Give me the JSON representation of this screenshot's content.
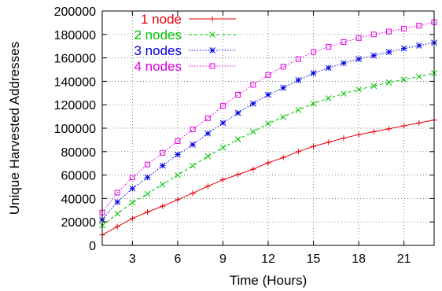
{
  "chart_data": {
    "type": "line",
    "title": "",
    "xlabel": "Time (Hours)",
    "ylabel": "Unique Harvested Addresses",
    "xlim": [
      1,
      23
    ],
    "ylim": [
      0,
      200000
    ],
    "x_ticks": [
      3,
      6,
      9,
      12,
      15,
      18,
      21
    ],
    "y_ticks": [
      0,
      20000,
      40000,
      60000,
      80000,
      100000,
      120000,
      140000,
      160000,
      180000,
      200000
    ],
    "grid": true,
    "legend_position": "top-left",
    "x": [
      1,
      2,
      3,
      4,
      5,
      6,
      7,
      8,
      9,
      10,
      11,
      12,
      13,
      14,
      15,
      16,
      17,
      18,
      19,
      20,
      21,
      22,
      23
    ],
    "series": [
      {
        "name": "1 node",
        "color": "#e8000b",
        "marker": "plus",
        "dash": "solid",
        "values": [
          9000,
          16000,
          23000,
          28500,
          33500,
          39000,
          44500,
          50500,
          56000,
          60500,
          65000,
          70500,
          75000,
          80000,
          84500,
          88000,
          91500,
          94500,
          97000,
          99500,
          102000,
          104500,
          107000
        ]
      },
      {
        "name": "2 nodes",
        "color": "#00c400",
        "marker": "cross",
        "dash": "dashed",
        "values": [
          17000,
          27000,
          36500,
          44000,
          52000,
          60000,
          68000,
          76000,
          83500,
          90500,
          97000,
          104000,
          109500,
          115500,
          121000,
          125500,
          129500,
          133000,
          136000,
          139000,
          141500,
          144000,
          147000
        ]
      },
      {
        "name": "3 nodes",
        "color": "#0000e0",
        "marker": "star",
        "dash": "dotted",
        "values": [
          22000,
          37000,
          48500,
          58000,
          68000,
          77500,
          86000,
          95500,
          104500,
          113000,
          121000,
          128500,
          134500,
          141000,
          147000,
          151500,
          155500,
          159000,
          162000,
          165000,
          168000,
          170500,
          173000
        ]
      },
      {
        "name": "4 nodes",
        "color": "#e000e0",
        "marker": "box",
        "dash": "dotted",
        "values": [
          28000,
          45000,
          58000,
          69000,
          79000,
          89000,
          99000,
          108500,
          119000,
          128500,
          137000,
          145500,
          152500,
          159000,
          165000,
          169500,
          173500,
          177000,
          180000,
          182500,
          185000,
          187500,
          190500
        ]
      }
    ]
  }
}
